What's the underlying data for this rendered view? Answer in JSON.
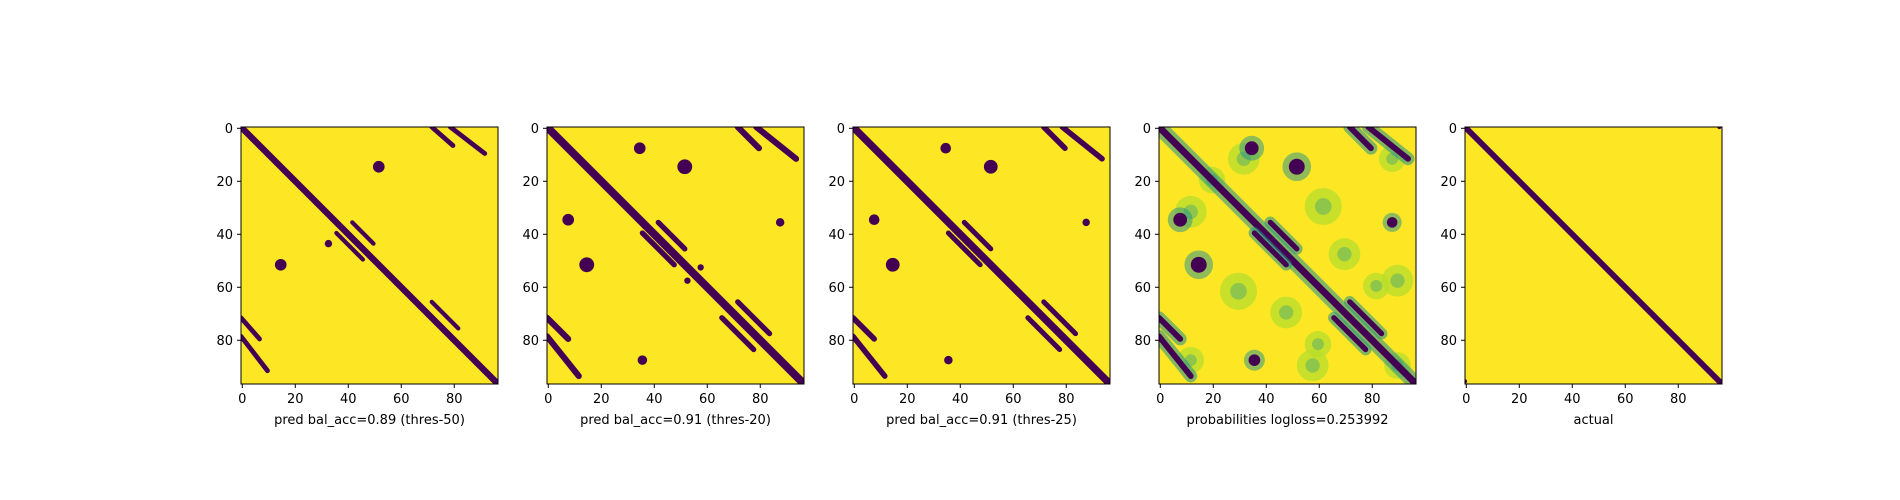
{
  "chart_data": [
    {
      "type": "heatmap",
      "xlabel": "pred bal_acc=0.89 (thres-50)",
      "x_ticks": [
        0,
        20,
        40,
        60,
        80
      ],
      "y_ticks": [
        0,
        20,
        40,
        60,
        80
      ],
      "xlim": [
        0,
        97
      ],
      "ylim": [
        97,
        0
      ],
      "grid": false,
      "values": "binary prediction; 0 = contact (dark purple), 1 = no contact (yellow)",
      "bands": [
        {
          "from": [
            0,
            0
          ],
          "to": [
            97,
            97
          ],
          "width": 2.4
        },
        {
          "from": [
            72,
            0
          ],
          "to": [
            80,
            7
          ],
          "width": 1.8
        },
        {
          "from": [
            79,
            0
          ],
          "to": [
            92,
            10
          ],
          "width": 1.8
        },
        {
          "from": [
            0,
            72
          ],
          "to": [
            7,
            80
          ],
          "width": 1.8
        },
        {
          "from": [
            0,
            79
          ],
          "to": [
            10,
            92
          ],
          "width": 1.8
        },
        {
          "from": [
            36,
            40
          ],
          "to": [
            46,
            50
          ],
          "width": 1.6
        },
        {
          "from": [
            42,
            36
          ],
          "to": [
            50,
            44
          ],
          "width": 1.6
        },
        {
          "from": [
            72,
            66
          ],
          "to": [
            82,
            76
          ],
          "width": 1.6
        }
      ],
      "blobs": [
        {
          "x": 52,
          "y": 15,
          "r": 2.2
        },
        {
          "x": 15,
          "y": 52,
          "r": 2.2
        },
        {
          "x": 33,
          "y": 44,
          "r": 1.4
        }
      ]
    },
    {
      "type": "heatmap",
      "xlabel": "pred bal_acc=0.91 (thres-20)",
      "x_ticks": [
        0,
        20,
        40,
        60,
        80
      ],
      "y_ticks": [
        0,
        20,
        40,
        60,
        80
      ],
      "xlim": [
        0,
        97
      ],
      "ylim": [
        97,
        0
      ],
      "grid": false,
      "values": "binary prediction; 0 = contact (dark purple), 1 = no contact (yellow)",
      "bands": [
        {
          "from": [
            0,
            0
          ],
          "to": [
            97,
            97
          ],
          "width": 3.0
        },
        {
          "from": [
            72,
            0
          ],
          "to": [
            80,
            8
          ],
          "width": 2.3
        },
        {
          "from": [
            79,
            0
          ],
          "to": [
            94,
            12
          ],
          "width": 2.3
        },
        {
          "from": [
            0,
            72
          ],
          "to": [
            8,
            80
          ],
          "width": 2.3
        },
        {
          "from": [
            0,
            79
          ],
          "to": [
            12,
            94
          ],
          "width": 2.3
        },
        {
          "from": [
            36,
            40
          ],
          "to": [
            48,
            52
          ],
          "width": 2.0
        },
        {
          "from": [
            42,
            36
          ],
          "to": [
            52,
            46
          ],
          "width": 2.0
        },
        {
          "from": [
            72,
            66
          ],
          "to": [
            84,
            78
          ],
          "width": 2.0
        },
        {
          "from": [
            66,
            72
          ],
          "to": [
            78,
            84
          ],
          "width": 2.0
        }
      ],
      "blobs": [
        {
          "x": 52,
          "y": 15,
          "r": 2.8
        },
        {
          "x": 15,
          "y": 52,
          "r": 2.8
        },
        {
          "x": 8,
          "y": 35,
          "r": 2.2
        },
        {
          "x": 35,
          "y": 8,
          "r": 2.2
        },
        {
          "x": 88,
          "y": 36,
          "r": 1.6
        },
        {
          "x": 36,
          "y": 88,
          "r": 1.8
        },
        {
          "x": 58,
          "y": 53,
          "r": 1.2
        },
        {
          "x": 53,
          "y": 58,
          "r": 1.2
        }
      ]
    },
    {
      "type": "heatmap",
      "xlabel": "pred bal_acc=0.91 (thres-25)",
      "x_ticks": [
        0,
        20,
        40,
        60,
        80
      ],
      "y_ticks": [
        0,
        20,
        40,
        60,
        80
      ],
      "xlim": [
        0,
        97
      ],
      "ylim": [
        97,
        0
      ],
      "grid": false,
      "values": "binary prediction; 0 = contact (dark purple), 1 = no contact (yellow)",
      "bands": [
        {
          "from": [
            0,
            0
          ],
          "to": [
            97,
            97
          ],
          "width": 2.8
        },
        {
          "from": [
            72,
            0
          ],
          "to": [
            80,
            8
          ],
          "width": 2.1
        },
        {
          "from": [
            79,
            0
          ],
          "to": [
            94,
            12
          ],
          "width": 2.1
        },
        {
          "from": [
            0,
            72
          ],
          "to": [
            8,
            80
          ],
          "width": 2.1
        },
        {
          "from": [
            0,
            79
          ],
          "to": [
            12,
            94
          ],
          "width": 2.1
        },
        {
          "from": [
            36,
            40
          ],
          "to": [
            48,
            52
          ],
          "width": 1.9
        },
        {
          "from": [
            42,
            36
          ],
          "to": [
            52,
            46
          ],
          "width": 1.9
        },
        {
          "from": [
            72,
            66
          ],
          "to": [
            84,
            78
          ],
          "width": 1.9
        },
        {
          "from": [
            66,
            72
          ],
          "to": [
            78,
            84
          ],
          "width": 1.9
        }
      ],
      "blobs": [
        {
          "x": 52,
          "y": 15,
          "r": 2.6
        },
        {
          "x": 15,
          "y": 52,
          "r": 2.6
        },
        {
          "x": 8,
          "y": 35,
          "r": 2.0
        },
        {
          "x": 35,
          "y": 8,
          "r": 2.0
        },
        {
          "x": 88,
          "y": 36,
          "r": 1.4
        },
        {
          "x": 36,
          "y": 88,
          "r": 1.6
        }
      ]
    },
    {
      "type": "heatmap",
      "xlabel": "probabilities logloss=0.253992",
      "x_ticks": [
        0,
        20,
        40,
        60,
        80
      ],
      "y_ticks": [
        0,
        20,
        40,
        60,
        80
      ],
      "xlim": [
        0,
        97
      ],
      "ylim": [
        97,
        0
      ],
      "grid": false,
      "values": "continuous probability; dark purple = high contact probability, yellow = low",
      "bands": [
        {
          "from": [
            0,
            0
          ],
          "to": [
            97,
            97
          ],
          "width": 2.6
        },
        {
          "from": [
            72,
            0
          ],
          "to": [
            80,
            8
          ],
          "width": 2.2
        },
        {
          "from": [
            79,
            0
          ],
          "to": [
            94,
            12
          ],
          "width": 2.2
        },
        {
          "from": [
            0,
            72
          ],
          "to": [
            8,
            80
          ],
          "width": 2.2
        },
        {
          "from": [
            0,
            79
          ],
          "to": [
            12,
            94
          ],
          "width": 2.2
        },
        {
          "from": [
            36,
            40
          ],
          "to": [
            48,
            52
          ],
          "width": 2.0
        },
        {
          "from": [
            42,
            36
          ],
          "to": [
            52,
            46
          ],
          "width": 2.0
        },
        {
          "from": [
            72,
            66
          ],
          "to": [
            84,
            78
          ],
          "width": 2.0
        },
        {
          "from": [
            66,
            72
          ],
          "to": [
            78,
            84
          ],
          "width": 2.0
        }
      ],
      "blobs": [
        {
          "x": 52,
          "y": 15,
          "r": 3.0
        },
        {
          "x": 15,
          "y": 52,
          "r": 3.0
        },
        {
          "x": 8,
          "y": 35,
          "r": 2.6
        },
        {
          "x": 35,
          "y": 8,
          "r": 2.6
        },
        {
          "x": 88,
          "y": 36,
          "r": 2.0
        },
        {
          "x": 36,
          "y": 88,
          "r": 2.2
        }
      ],
      "haze": [
        {
          "x": 32,
          "y": 12,
          "r": 6
        },
        {
          "x": 12,
          "y": 32,
          "r": 6
        },
        {
          "x": 62,
          "y": 30,
          "r": 7
        },
        {
          "x": 30,
          "y": 62,
          "r": 7
        },
        {
          "x": 90,
          "y": 58,
          "r": 6
        },
        {
          "x": 58,
          "y": 90,
          "r": 6
        },
        {
          "x": 20,
          "y": 20,
          "r": 5
        },
        {
          "x": 70,
          "y": 48,
          "r": 6
        },
        {
          "x": 48,
          "y": 70,
          "r": 6
        },
        {
          "x": 90,
          "y": 90,
          "r": 5
        },
        {
          "x": 88,
          "y": 12,
          "r": 5
        },
        {
          "x": 12,
          "y": 88,
          "r": 5
        },
        {
          "x": 60,
          "y": 82,
          "r": 5
        },
        {
          "x": 82,
          "y": 60,
          "r": 5
        }
      ]
    },
    {
      "type": "heatmap",
      "xlabel": "actual",
      "x_ticks": [
        0,
        20,
        40,
        60,
        80
      ],
      "y_ticks": [
        0,
        20,
        40,
        60,
        80
      ],
      "xlim": [
        0,
        97
      ],
      "ylim": [
        97,
        0
      ],
      "grid": false,
      "values": "ground-truth contact map; 0 = contact (dark purple), 1 = no contact (yellow)",
      "bands": [
        {
          "from": [
            0,
            0
          ],
          "to": [
            97,
            97
          ],
          "width": 2.2
        }
      ],
      "blobs": [
        {
          "x": 96,
          "y": 0,
          "r": 0.8
        },
        {
          "x": 0,
          "y": 96,
          "r": 0.8
        }
      ]
    }
  ],
  "colors": {
    "high": "#fde725",
    "low": "#440154",
    "mid": "#21918c",
    "light": "#b5de2b"
  }
}
